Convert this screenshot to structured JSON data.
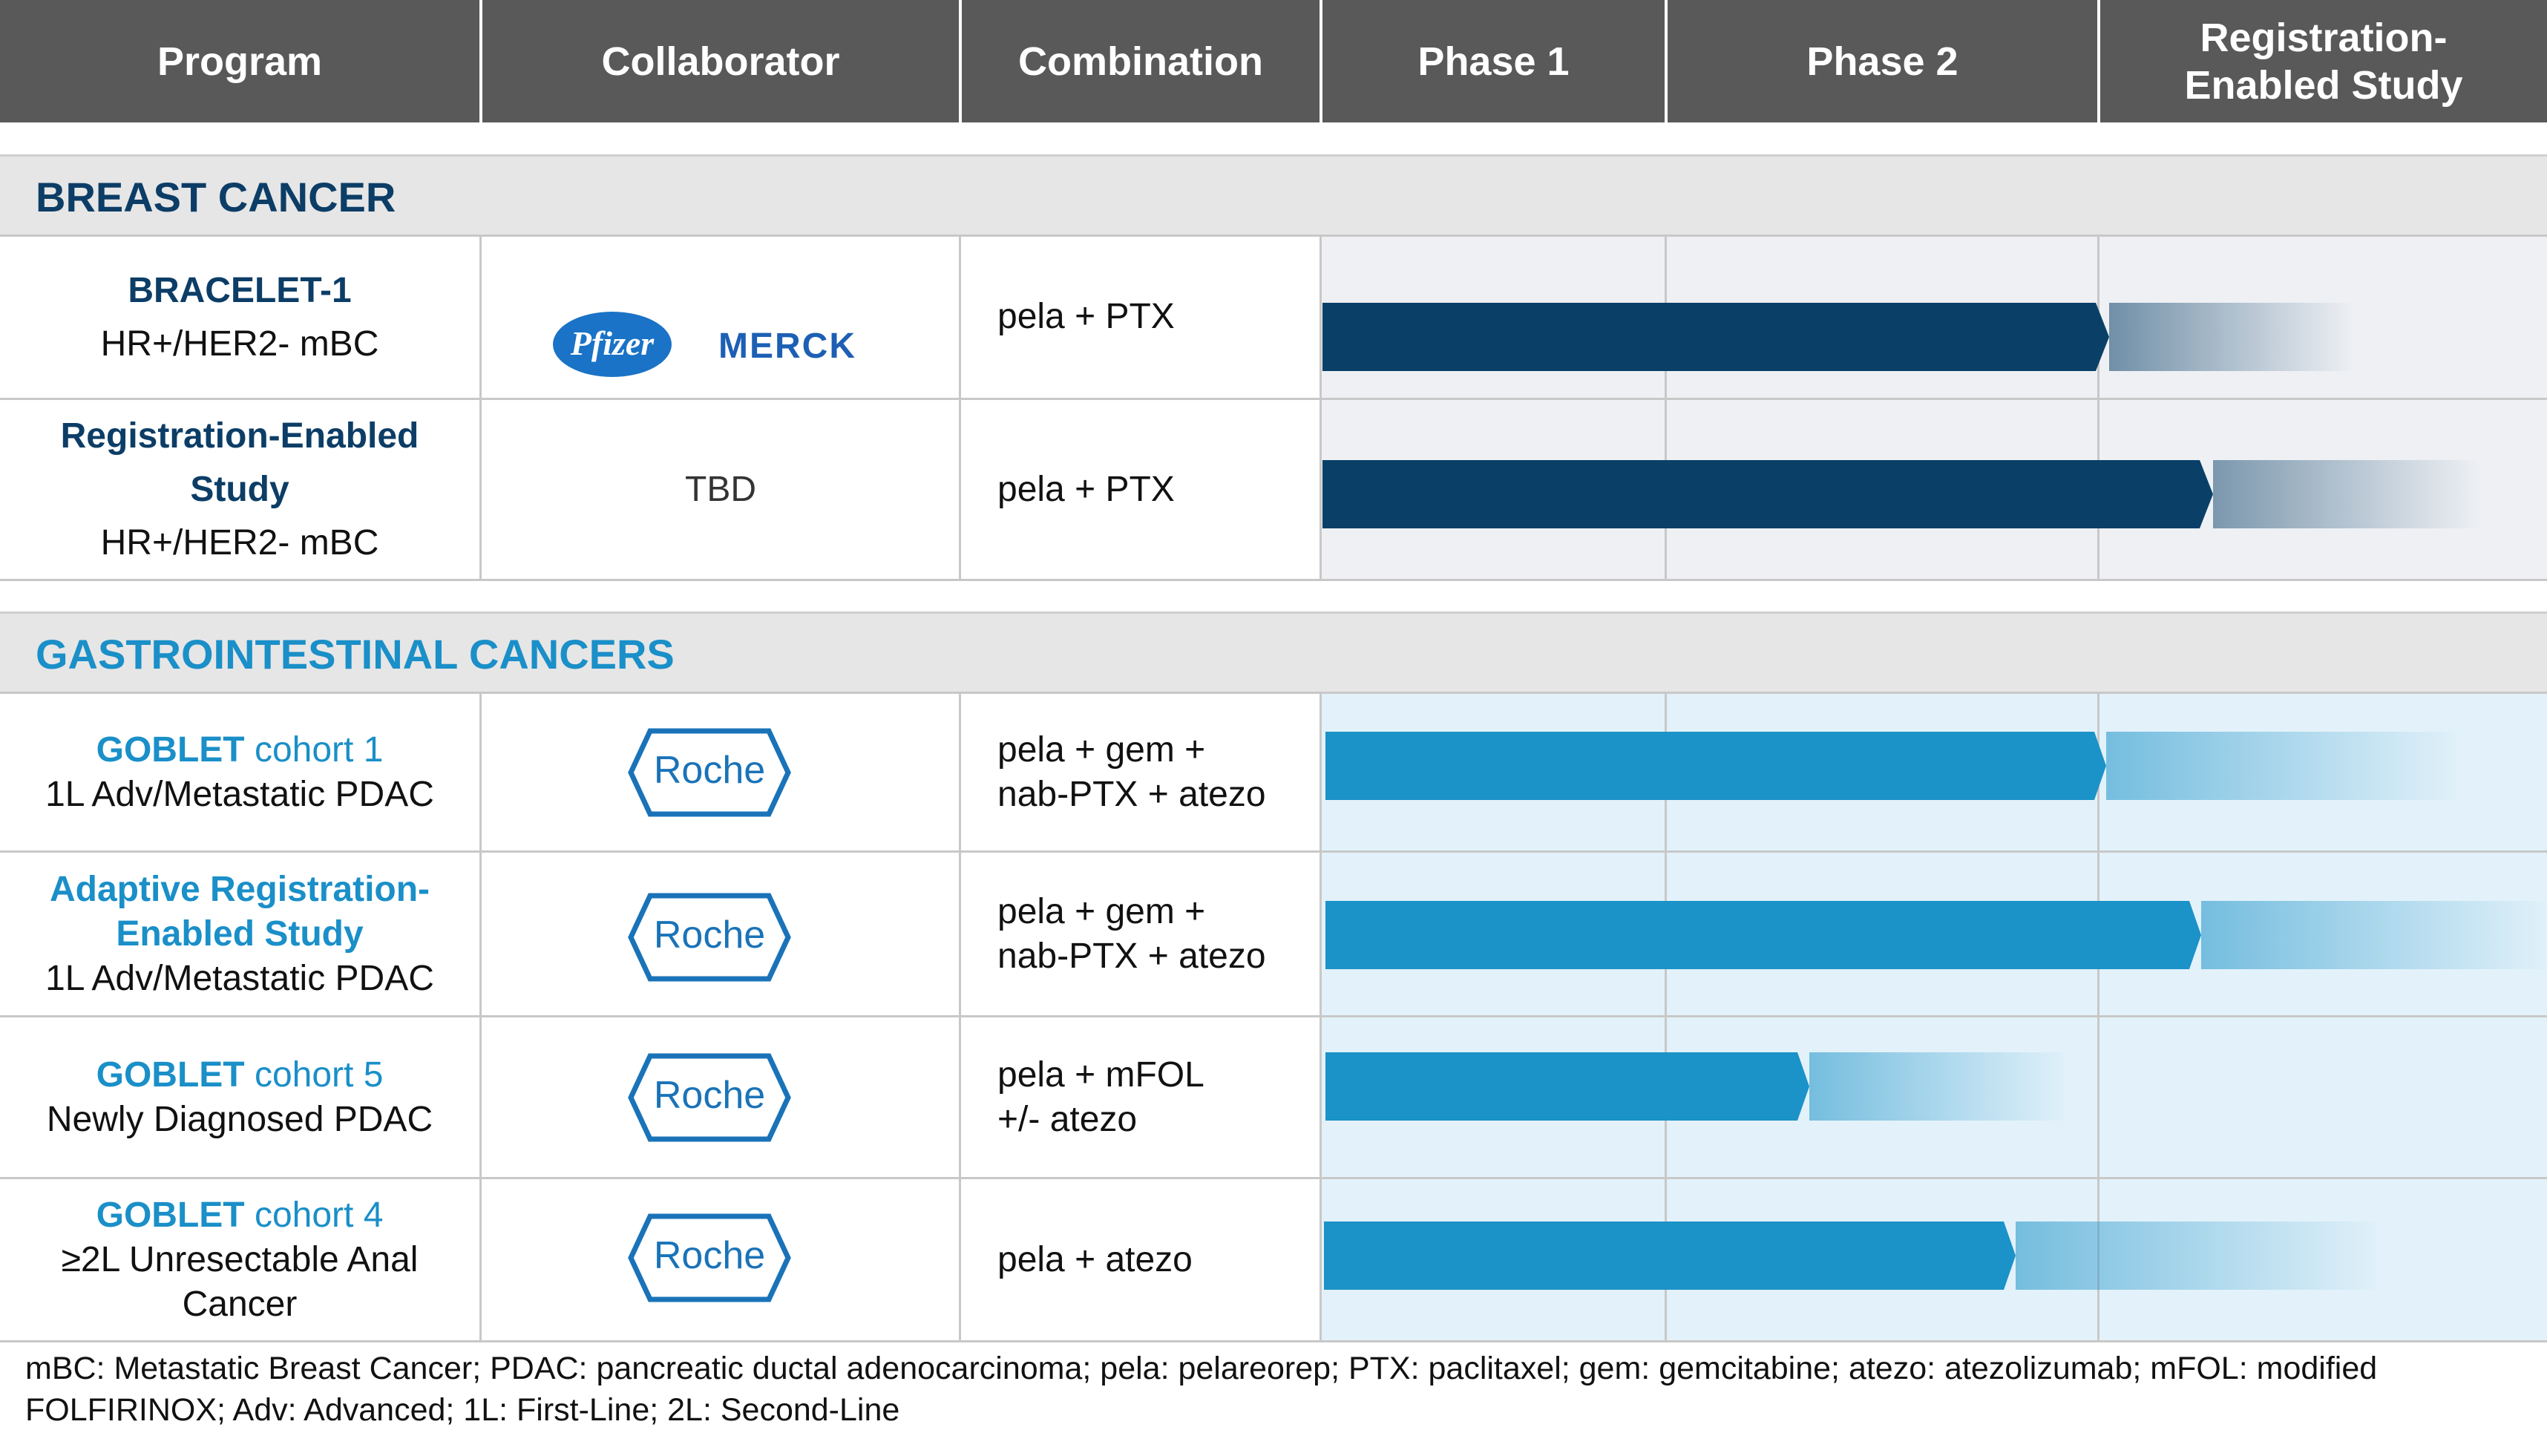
{
  "header": {
    "columns": [
      "Program",
      "Collaborator",
      "Combination",
      "Phase 1",
      "Phase 2",
      "Registration-Enabled Study"
    ],
    "registration_line1": "Registration-",
    "registration_line2": "Enabled Study"
  },
  "colors": {
    "header_bg": "#595959",
    "breast_title": "#0c3d66",
    "gi_title": "#1a8fc8",
    "breast_bar": "#0a4068",
    "gi_bar": "#1b92c8",
    "breast_panel": "#eef0f4",
    "gi_panel": "#e3f2fa"
  },
  "breast": {
    "title": "BREAST CANCER",
    "rows": [
      {
        "program_title": "BRACELET-1",
        "program_sub": "HR+/HER2- mBC",
        "collaborators": [
          "Pfizer",
          "MERCK"
        ],
        "combination": "pela + PTX",
        "progress_pct": 62
      },
      {
        "program_title_1": "Registration-Enabled",
        "program_title_2": "Study",
        "program_sub": "HR+/HER2- mBC",
        "collaborator": "TBD",
        "combination": "pela + PTX",
        "progress_pct": 71
      }
    ]
  },
  "gi": {
    "title": "GASTROINTESTINAL CANCERS",
    "rows": [
      {
        "program_title": "GOBLET",
        "program_title_rest": " cohort 1",
        "program_sub": "1L Adv/Metastatic PDAC",
        "collaborator": "Roche",
        "combination_1": "pela + gem +",
        "combination_2": "nab-PTX + atezo",
        "progress_pct": 62
      },
      {
        "program_title_1": "Adaptive Registration-",
        "program_title_2": "Enabled Study",
        "program_sub": "1L Adv/Metastatic PDAC",
        "collaborator": "Roche",
        "combination_1": "pela + gem +",
        "combination_2": "nab-PTX + atezo",
        "progress_pct": 70
      },
      {
        "program_title": "GOBLET",
        "program_title_rest": " cohort 5",
        "program_sub": "Newly Diagnosed PDAC",
        "collaborator": "Roche",
        "combination_1": "pela + mFOL",
        "combination_2": "+/- atezo",
        "progress_pct": 39
      },
      {
        "program_title": "GOBLET",
        "program_title_rest": " cohort 4",
        "program_sub_1": "≥2L Unresectable Anal",
        "program_sub_2": "Cancer",
        "collaborator": "Roche",
        "combination": "pela + atezo",
        "progress_pct": 55
      }
    ]
  },
  "footnote_1": "mBC: Metastatic Breast Cancer; PDAC: pancreatic ductal adenocarcinoma; pela: pelareorep; PTX: paclitaxel; gem: gemcitabine; atezo: atezolizumab; mFOL: modified",
  "footnote_2": "FOLFIRINOX; Adv: Advanced; 1L: First-Line; 2L: Second-Line"
}
